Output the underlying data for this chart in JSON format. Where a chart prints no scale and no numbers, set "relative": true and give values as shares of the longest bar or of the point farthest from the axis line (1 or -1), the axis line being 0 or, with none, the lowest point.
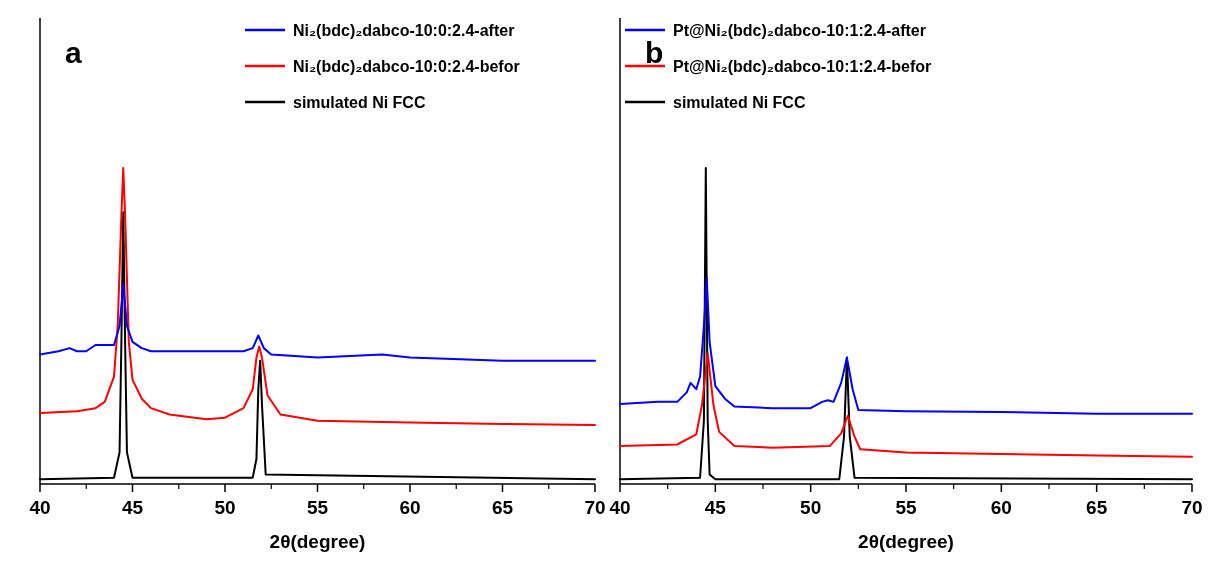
{
  "chart_data": [
    {
      "type": "line",
      "title": "a",
      "xlabel": "2θ(degree)",
      "relative": true,
      "xlim": [
        40,
        70
      ],
      "xticks": [
        40,
        45,
        50,
        55,
        60,
        65,
        70
      ],
      "legend": "top right",
      "grid": false,
      "marker": "none",
      "line_style": "solid",
      "series": [
        {
          "name": "Ni₂(bdc)₂dabco-10:0:2.4-after",
          "color": "#0000ff",
          "x": [
            40,
            41,
            41.6,
            42,
            42.5,
            43,
            43.5,
            44,
            44.3,
            44.5,
            44.7,
            45,
            45.5,
            46,
            48,
            50,
            51,
            51.5,
            51.8,
            52.1,
            52.5,
            55,
            58.5,
            60,
            65,
            70
          ],
          "values": [
            0.41,
            0.42,
            0.43,
            0.42,
            0.42,
            0.44,
            0.44,
            0.44,
            0.5,
            0.63,
            0.5,
            0.45,
            0.43,
            0.42,
            0.42,
            0.42,
            0.42,
            0.43,
            0.47,
            0.43,
            0.41,
            0.4,
            0.41,
            0.4,
            0.39,
            0.39
          ]
        },
        {
          "name": "Ni₂(bdc)₂dabco-10:0:2.4-befor",
          "color": "#ff0000",
          "x": [
            40,
            42,
            43,
            43.5,
            44,
            44.2,
            44.4,
            44.5,
            44.6,
            44.8,
            45,
            45.5,
            46,
            47,
            49,
            50,
            51,
            51.5,
            51.7,
            51.85,
            52,
            52.3,
            53,
            55,
            60,
            65,
            70
          ],
          "values": [
            0.225,
            0.23,
            0.24,
            0.26,
            0.34,
            0.5,
            0.85,
            1,
            0.85,
            0.45,
            0.33,
            0.27,
            0.24,
            0.22,
            0.205,
            0.21,
            0.24,
            0.3,
            0.4,
            0.435,
            0.4,
            0.28,
            0.22,
            0.2,
            0.195,
            0.19,
            0.187
          ]
        },
        {
          "name": "simulated Ni FCC",
          "color": "#000000",
          "x": [
            40,
            44,
            44.3,
            44.4,
            44.5,
            44.6,
            44.7,
            45,
            51.5,
            51.7,
            51.8,
            51.9,
            52,
            52.2,
            70
          ],
          "values": [
            0.015,
            0.02,
            0.1,
            0.45,
            0.86,
            0.45,
            0.1,
            0.02,
            0.02,
            0.08,
            0.3,
            0.39,
            0.25,
            0.03,
            0.015
          ]
        }
      ]
    },
    {
      "type": "line",
      "title": "b",
      "xlabel": "2θ(degree)",
      "relative": true,
      "xlim": [
        40,
        70
      ],
      "xticks": [
        40,
        45,
        50,
        55,
        60,
        65,
        70
      ],
      "legend": "top left",
      "grid": false,
      "marker": "none",
      "line_style": "solid",
      "series": [
        {
          "name": "Pt@Ni₂(bdc)₂dabco-10:1:2.4-after",
          "color": "#0000ff",
          "x": [
            40,
            42,
            43,
            43.5,
            43.7,
            44,
            44.2,
            44.4,
            44.55,
            44.7,
            45,
            45.5,
            46,
            48,
            50,
            50.6,
            50.9,
            51.2,
            51.6,
            51.9,
            52.2,
            52.5,
            55,
            60,
            65,
            70
          ],
          "values": [
            0.253,
            0.26,
            0.26,
            0.29,
            0.32,
            0.3,
            0.34,
            0.5,
            0.65,
            0.45,
            0.31,
            0.27,
            0.245,
            0.24,
            0.24,
            0.26,
            0.265,
            0.26,
            0.32,
            0.4,
            0.3,
            0.234,
            0.23,
            0.228,
            0.222,
            0.222
          ]
        },
        {
          "name": "Pt@Ni₂(bdc)₂dabco-10:1:2.4-befor",
          "color": "#ff0000",
          "x": [
            40,
            43,
            44,
            44.3,
            44.6,
            44.9,
            45.2,
            46,
            48,
            51,
            51.6,
            51.95,
            52.3,
            52.6,
            55,
            60,
            65,
            70
          ],
          "values": [
            0.12,
            0.125,
            0.157,
            0.25,
            0.414,
            0.25,
            0.165,
            0.12,
            0.115,
            0.12,
            0.16,
            0.216,
            0.15,
            0.11,
            0.1,
            0.095,
            0.09,
            0.086
          ]
        },
        {
          "name": "simulated Ni FCC",
          "color": "#000000",
          "x": [
            40,
            44.2,
            44.4,
            44.5,
            44.6,
            44.7,
            45,
            51.5,
            51.75,
            51.9,
            52.05,
            52.3,
            70
          ],
          "values": [
            0.015,
            0.02,
            0.2,
            1,
            0.2,
            0.03,
            0.015,
            0.015,
            0.15,
            0.4,
            0.15,
            0.02,
            0.015
          ]
        }
      ]
    }
  ]
}
